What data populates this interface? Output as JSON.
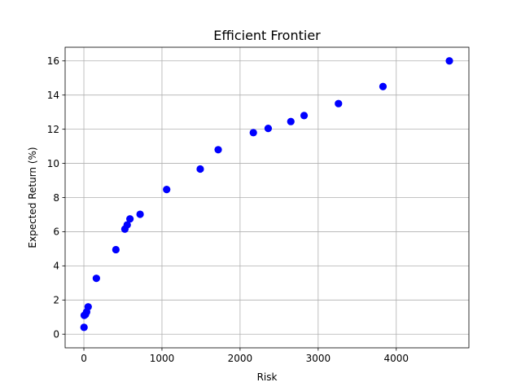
{
  "chart_data": {
    "type": "scatter",
    "title": "Efficient Frontier",
    "xlabel": "Risk",
    "ylabel": "Expected Return (%)",
    "xlim": [
      -240,
      4930
    ],
    "ylim": [
      -0.8,
      16.8
    ],
    "xticks": [
      0,
      1000,
      2000,
      3000,
      4000
    ],
    "yticks": [
      0,
      2,
      4,
      6,
      8,
      10,
      12,
      14,
      16
    ],
    "grid": true,
    "point_color": "#0000ff",
    "points": [
      {
        "x": 2,
        "y": 0.4
      },
      {
        "x": 5,
        "y": 1.1
      },
      {
        "x": 20,
        "y": 1.15
      },
      {
        "x": 35,
        "y": 1.3
      },
      {
        "x": 55,
        "y": 1.6
      },
      {
        "x": 160,
        "y": 3.27
      },
      {
        "x": 410,
        "y": 4.95
      },
      {
        "x": 525,
        "y": 6.15
      },
      {
        "x": 555,
        "y": 6.4
      },
      {
        "x": 590,
        "y": 6.75
      },
      {
        "x": 720,
        "y": 7.02
      },
      {
        "x": 1060,
        "y": 8.47
      },
      {
        "x": 1490,
        "y": 9.67
      },
      {
        "x": 1720,
        "y": 10.8
      },
      {
        "x": 2170,
        "y": 11.8
      },
      {
        "x": 2360,
        "y": 12.05
      },
      {
        "x": 2650,
        "y": 12.45
      },
      {
        "x": 2820,
        "y": 12.8
      },
      {
        "x": 3260,
        "y": 13.5
      },
      {
        "x": 3830,
        "y": 14.5
      },
      {
        "x": 4680,
        "y": 16.0
      }
    ]
  }
}
